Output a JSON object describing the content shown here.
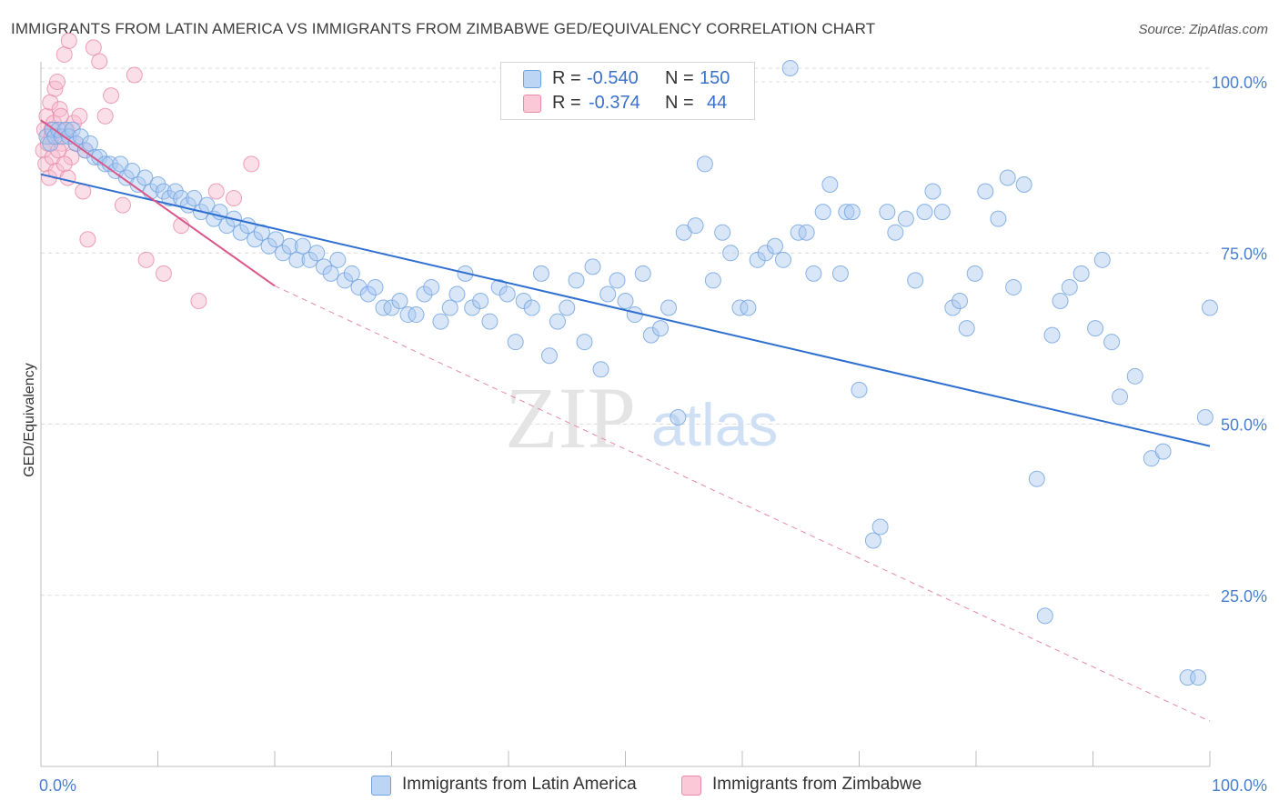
{
  "title": "IMMIGRANTS FROM LATIN AMERICA VS IMMIGRANTS FROM ZIMBABWE GED/EQUIVALENCY CORRELATION CHART",
  "source": "Source: ZipAtlas.com",
  "watermark": {
    "zip": "ZIP",
    "atlas": "atlas"
  },
  "legend_top": {
    "rows": [
      {
        "r_label": "R =",
        "r_value": "-0.540",
        "n_label": "N =",
        "n_value": "150",
        "color": "#a8c8f0"
      },
      {
        "r_label": "R =",
        "r_value": "-0.374",
        "n_label": "N =",
        "n_value": "44",
        "color": "#f7b8cb"
      }
    ]
  },
  "legend_bottom": [
    {
      "label": "Immigrants from Latin America",
      "color": "#a8c8f0"
    },
    {
      "label": "Immigrants from Zimbabwe",
      "color": "#f7b8cb"
    }
  ],
  "chart_data": {
    "type": "scatter",
    "ylabel": "GED/Equivalency",
    "xlim": [
      0,
      100
    ],
    "ylim": [
      0,
      102
    ],
    "x_tick_labels": [
      {
        "value": 0,
        "label": "0.0%"
      },
      {
        "value": 100,
        "label": "100.0%"
      }
    ],
    "y_tick_labels": [
      {
        "value": 100,
        "label": "100.0%"
      },
      {
        "value": 75,
        "label": "75.0%"
      },
      {
        "value": 50,
        "label": "50.0%"
      },
      {
        "value": 25,
        "label": "25.0%"
      }
    ],
    "x_minor_ticks": [
      0,
      10,
      20,
      30,
      40,
      50,
      60,
      70,
      80,
      90,
      100
    ],
    "grid": "horizontal dashed",
    "series": [
      {
        "name": "Immigrants from Latin America",
        "color": "#6fa3e0",
        "fill": "#a8c8f0",
        "trend": {
          "x": [
            0,
            100
          ],
          "y": [
            86.5,
            46.8
          ]
        },
        "points": [
          [
            0.5,
            92
          ],
          [
            0.8,
            91
          ],
          [
            1.0,
            93
          ],
          [
            1.2,
            92
          ],
          [
            1.5,
            93
          ],
          [
            1.8,
            92
          ],
          [
            2.1,
            93
          ],
          [
            2.4,
            92
          ],
          [
            2.7,
            93
          ],
          [
            3.0,
            91
          ],
          [
            3.4,
            92
          ],
          [
            3.8,
            90
          ],
          [
            4.2,
            91
          ],
          [
            4.6,
            89
          ],
          [
            5.0,
            89
          ],
          [
            5.5,
            88
          ],
          [
            5.9,
            88
          ],
          [
            6.4,
            87
          ],
          [
            6.8,
            88
          ],
          [
            7.3,
            86
          ],
          [
            7.8,
            87
          ],
          [
            8.3,
            85
          ],
          [
            8.9,
            86
          ],
          [
            9.4,
            84
          ],
          [
            10.0,
            85
          ],
          [
            10.5,
            84
          ],
          [
            11.0,
            83
          ],
          [
            11.5,
            84
          ],
          [
            12.0,
            83
          ],
          [
            12.6,
            82
          ],
          [
            13.1,
            83
          ],
          [
            13.7,
            81
          ],
          [
            14.2,
            82
          ],
          [
            14.8,
            80
          ],
          [
            15.3,
            81
          ],
          [
            15.9,
            79
          ],
          [
            16.5,
            80
          ],
          [
            17.1,
            78
          ],
          [
            17.7,
            79
          ],
          [
            18.3,
            77
          ],
          [
            18.9,
            78
          ],
          [
            19.5,
            76
          ],
          [
            20.1,
            77
          ],
          [
            20.7,
            75
          ],
          [
            21.3,
            76
          ],
          [
            21.9,
            74
          ],
          [
            22.4,
            76
          ],
          [
            23.0,
            74
          ],
          [
            23.6,
            75
          ],
          [
            24.2,
            73
          ],
          [
            24.8,
            72
          ],
          [
            25.4,
            74
          ],
          [
            26.0,
            71
          ],
          [
            26.6,
            72
          ],
          [
            27.2,
            70
          ],
          [
            28.0,
            69
          ],
          [
            28.6,
            70
          ],
          [
            29.3,
            67
          ],
          [
            30.0,
            67
          ],
          [
            30.7,
            68
          ],
          [
            31.4,
            66
          ],
          [
            32.1,
            66
          ],
          [
            32.8,
            69
          ],
          [
            33.4,
            70
          ],
          [
            34.2,
            65
          ],
          [
            35.0,
            67
          ],
          [
            35.6,
            69
          ],
          [
            36.3,
            72
          ],
          [
            36.9,
            67
          ],
          [
            37.6,
            68
          ],
          [
            38.4,
            65
          ],
          [
            39.2,
            70
          ],
          [
            39.9,
            69
          ],
          [
            40.6,
            62
          ],
          [
            41.3,
            68
          ],
          [
            42.0,
            67
          ],
          [
            42.8,
            72
          ],
          [
            43.5,
            60
          ],
          [
            44.2,
            65
          ],
          [
            45.0,
            67
          ],
          [
            45.8,
            71
          ],
          [
            46.5,
            62
          ],
          [
            47.2,
            73
          ],
          [
            47.9,
            58
          ],
          [
            48.5,
            69
          ],
          [
            49.3,
            71
          ],
          [
            50.0,
            68
          ],
          [
            50.8,
            66
          ],
          [
            51.5,
            72
          ],
          [
            52.2,
            63
          ],
          [
            53.0,
            64
          ],
          [
            53.7,
            67
          ],
          [
            54.5,
            51
          ],
          [
            55.0,
            78
          ],
          [
            56.0,
            79
          ],
          [
            56.8,
            88
          ],
          [
            57.5,
            71
          ],
          [
            58.3,
            78
          ],
          [
            59.0,
            75
          ],
          [
            59.8,
            67
          ],
          [
            60.5,
            67
          ],
          [
            61.3,
            74
          ],
          [
            62.0,
            75
          ],
          [
            62.8,
            76
          ],
          [
            63.5,
            74
          ],
          [
            64.1,
            102
          ],
          [
            64.8,
            78
          ],
          [
            65.5,
            78
          ],
          [
            66.1,
            72
          ],
          [
            66.9,
            81
          ],
          [
            67.5,
            85
          ],
          [
            68.4,
            72
          ],
          [
            68.9,
            81
          ],
          [
            69.4,
            81
          ],
          [
            70.0,
            55
          ],
          [
            71.2,
            33
          ],
          [
            71.8,
            35
          ],
          [
            72.4,
            81
          ],
          [
            73.1,
            78
          ],
          [
            74.0,
            80
          ],
          [
            74.8,
            71
          ],
          [
            75.6,
            81
          ],
          [
            76.3,
            84
          ],
          [
            77.1,
            81
          ],
          [
            78.0,
            67
          ],
          [
            78.6,
            68
          ],
          [
            79.2,
            64
          ],
          [
            79.9,
            72
          ],
          [
            80.8,
            84
          ],
          [
            81.9,
            80
          ],
          [
            82.7,
            86
          ],
          [
            83.2,
            70
          ],
          [
            84.1,
            85
          ],
          [
            85.2,
            42
          ],
          [
            85.9,
            22
          ],
          [
            86.5,
            63
          ],
          [
            87.2,
            68
          ],
          [
            88.0,
            70
          ],
          [
            89.0,
            72
          ],
          [
            90.2,
            64
          ],
          [
            90.8,
            74
          ],
          [
            91.6,
            62
          ],
          [
            92.3,
            54
          ],
          [
            93.6,
            57
          ],
          [
            95.0,
            45
          ],
          [
            96.0,
            46
          ],
          [
            98.1,
            13
          ],
          [
            99.0,
            13
          ],
          [
            99.6,
            51
          ],
          [
            100.0,
            67
          ]
        ]
      },
      {
        "name": "Immigrants from Zimbabwe",
        "color": "#e88aa8",
        "fill": "#f7b8cb",
        "trend_solid": {
          "x": [
            0,
            20
          ],
          "y": [
            94.4,
            70.2
          ]
        },
        "trend_dashed": {
          "x": [
            20,
            100
          ],
          "y": [
            70.2,
            6.6
          ]
        },
        "points": [
          [
            0.2,
            90
          ],
          [
            0.3,
            93
          ],
          [
            0.4,
            88
          ],
          [
            0.5,
            95
          ],
          [
            0.6,
            91
          ],
          [
            0.7,
            86
          ],
          [
            0.8,
            97
          ],
          [
            0.9,
            92
          ],
          [
            1.0,
            89
          ],
          [
            1.1,
            94
          ],
          [
            1.2,
            99
          ],
          [
            1.3,
            87
          ],
          [
            1.4,
            100
          ],
          [
            1.5,
            92
          ],
          [
            1.6,
            96
          ],
          [
            1.8,
            91
          ],
          [
            2.0,
            104
          ],
          [
            2.2,
            93
          ],
          [
            2.4,
            106
          ],
          [
            2.6,
            89
          ],
          [
            2.8,
            94
          ],
          [
            3.0,
            91
          ],
          [
            3.3,
            95
          ],
          [
            3.6,
            84
          ],
          [
            4.0,
            77
          ],
          [
            4.5,
            105
          ],
          [
            5.0,
            103
          ],
          [
            5.5,
            95
          ],
          [
            6.0,
            98
          ],
          [
            7.0,
            82
          ],
          [
            8.0,
            101
          ],
          [
            9.0,
            74
          ],
          [
            10.5,
            72
          ],
          [
            12.0,
            79
          ],
          [
            13.5,
            68
          ],
          [
            15.0,
            84
          ],
          [
            16.5,
            83
          ],
          [
            18.0,
            88
          ],
          [
            1.5,
            90
          ],
          [
            2.0,
            88
          ],
          [
            0.9,
            93
          ],
          [
            1.7,
            95
          ],
          [
            3.8,
            90
          ],
          [
            2.3,
            86
          ]
        ]
      }
    ]
  }
}
